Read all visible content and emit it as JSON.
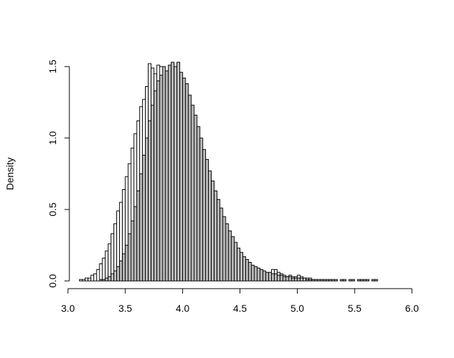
{
  "chart_data": {
    "type": "histogram",
    "ylabel": "Density",
    "bins": [
      3.1,
      3.125,
      3.15,
      3.175,
      3.2,
      3.225,
      3.25,
      3.275,
      3.3,
      3.325,
      3.35,
      3.375,
      3.4,
      3.425,
      3.45,
      3.475,
      3.5,
      3.525,
      3.55,
      3.575,
      3.6,
      3.625,
      3.65,
      3.675,
      3.7,
      3.725,
      3.75,
      3.775,
      3.8,
      3.825,
      3.85,
      3.875,
      3.9,
      3.925,
      3.95,
      3.975,
      4.0,
      4.025,
      4.05,
      4.075,
      4.1,
      4.125,
      4.15,
      4.175,
      4.2,
      4.225,
      4.25,
      4.275,
      4.3,
      4.325,
      4.35,
      4.375,
      4.4,
      4.425,
      4.45,
      4.475,
      4.5,
      4.525,
      4.55,
      4.575,
      4.6,
      4.625,
      4.65,
      4.675,
      4.7,
      4.725,
      4.75,
      4.775,
      4.8,
      4.825,
      4.85,
      4.875,
      4.9,
      4.925,
      4.95,
      4.975,
      5.0,
      5.025,
      5.05,
      5.075,
      5.1,
      5.125,
      5.15,
      5.175,
      5.2,
      5.225,
      5.25,
      5.275,
      5.3,
      5.325,
      5.35,
      5.375,
      5.4,
      5.425,
      5.45,
      5.475,
      5.5,
      5.525,
      5.55,
      5.575,
      5.6,
      5.625,
      5.65,
      5.675,
      5.7
    ],
    "series": [
      {
        "color": "#ffffff",
        "values": [
          0.01,
          0.01,
          0.02,
          0.02,
          0.04,
          0.05,
          0.08,
          0.12,
          0.16,
          0.21,
          0.26,
          0.33,
          0.4,
          0.49,
          0.55,
          0.64,
          0.73,
          0.82,
          0.93,
          1.03,
          1.12,
          1.22,
          1.27,
          1.36,
          1.52,
          1.49,
          1.45,
          1.51,
          1.5,
          1.47,
          1.44,
          1.42,
          1.38,
          1.33,
          1.28,
          1.22,
          1.15,
          1.08,
          1.0,
          0.93,
          0.85,
          0.78,
          0.7,
          0.63,
          0.56,
          0.5,
          0.44,
          0.39,
          0.34,
          0.3,
          0.26,
          0.22,
          0.19,
          0.16,
          0.14,
          0.12,
          0.1,
          0.09,
          0.08,
          0.07,
          0.06,
          0.05,
          0.05,
          0.04,
          0.04,
          0.03,
          0.03,
          0.08,
          0.08,
          0.06,
          0.05,
          0.04,
          0.03,
          0.04,
          0.03,
          0.03,
          0.04,
          0.03,
          0.02,
          0.02,
          0.02,
          0.01,
          0.01,
          0,
          0,
          0,
          0,
          0,
          0,
          0,
          0,
          0,
          0,
          0,
          0,
          0,
          0,
          0,
          0,
          0,
          0,
          0,
          0,
          0
        ]
      },
      {
        "color": "#bebebe",
        "values": [
          0,
          0,
          0,
          0,
          0,
          0,
          0,
          0.01,
          0.01,
          0.02,
          0.03,
          0.05,
          0.07,
          0.1,
          0.14,
          0.19,
          0.25,
          0.33,
          0.42,
          0.52,
          0.63,
          0.75,
          0.88,
          1.0,
          1.12,
          1.23,
          1.33,
          1.4,
          1.44,
          1.5,
          1.47,
          1.51,
          1.53,
          1.5,
          1.53,
          1.46,
          1.42,
          1.38,
          1.3,
          1.23,
          1.16,
          1.08,
          1.0,
          0.92,
          0.85,
          0.77,
          0.7,
          0.63,
          0.57,
          0.51,
          0.45,
          0.4,
          0.35,
          0.31,
          0.27,
          0.23,
          0.2,
          0.17,
          0.15,
          0.13,
          0.11,
          0.1,
          0.09,
          0.08,
          0.07,
          0.06,
          0.06,
          0.05,
          0.05,
          0.04,
          0.04,
          0.03,
          0.03,
          0.03,
          0.02,
          0.02,
          0.02,
          0.02,
          0.02,
          0.01,
          0.01,
          0.01,
          0.01,
          0.01,
          0.01,
          0.01,
          0.01,
          0.01,
          0.01,
          0.01,
          0,
          0.01,
          0.01,
          0,
          0.01,
          0.01,
          0,
          0.01,
          0.01,
          0.01,
          0.01,
          0,
          0.01,
          0.01
        ]
      }
    ],
    "xlim": [
      3.0,
      6.0
    ],
    "xticks": [
      {
        "value": 3.0,
        "label": "3.0"
      },
      3.5,
      {
        "value": 4.0,
        "label": "4.0"
      },
      4.5,
      {
        "value": 5.0,
        "label": "5.0"
      },
      5.5,
      {
        "value": 6.0,
        "label": "6.0"
      }
    ],
    "ylim": [
      0,
      1.5
    ],
    "yticks": [
      {
        "value": 0,
        "label": "0.0"
      },
      0.5,
      {
        "value": 1,
        "label": "1.0"
      },
      1.5
    ]
  }
}
